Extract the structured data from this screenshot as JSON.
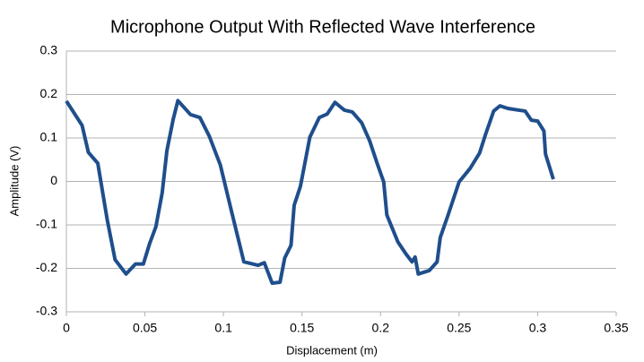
{
  "chart_data": {
    "type": "line",
    "title": "Microphone Output With Reflected Wave Interference",
    "x_label": "Displacement  (m)",
    "y_label": "Amplitude (V)",
    "xlim": [
      0,
      0.35
    ],
    "xticks": [
      0,
      0.05,
      0.1,
      0.15,
      0.2,
      0.25,
      0.3,
      0.35
    ],
    "ylim": [
      -0.3,
      0.3
    ],
    "yticks": [
      -0.3,
      -0.2,
      -0.1,
      0,
      0.1,
      0.2,
      0.3
    ],
    "grid": true,
    "series": [
      {
        "color": "#1f4e8c",
        "x": [
          0,
          0.01,
          0.014,
          0.02,
          0.026,
          0.031,
          0.038,
          0.044,
          0.049,
          0.053,
          0.057,
          0.061,
          0.064,
          0.068,
          0.071,
          0.075,
          0.079,
          0.085,
          0.091,
          0.098,
          0.105,
          0.113,
          0.122,
          0.126,
          0.131,
          0.136,
          0.139,
          0.143,
          0.145,
          0.149,
          0.155,
          0.161,
          0.166,
          0.171,
          0.177,
          0.182,
          0.188,
          0.193,
          0.198,
          0.202,
          0.204,
          0.211,
          0.216,
          0.22,
          0.222,
          0.224,
          0.231,
          0.236,
          0.238,
          0.243,
          0.25,
          0.257,
          0.263,
          0.267,
          0.272,
          0.276,
          0.281,
          0.288,
          0.292,
          0.296,
          0.3,
          0.304,
          0.305,
          0.31
        ],
        "values": [
          0.185,
          0.129,
          0.067,
          0.042,
          -0.088,
          -0.18,
          -0.213,
          -0.19,
          -0.19,
          -0.143,
          -0.104,
          -0.026,
          0.071,
          0.143,
          0.186,
          0.17,
          0.154,
          0.147,
          0.104,
          0.038,
          -0.067,
          -0.185,
          -0.193,
          -0.187,
          -0.234,
          -0.232,
          -0.176,
          -0.147,
          -0.055,
          -0.011,
          0.102,
          0.147,
          0.155,
          0.182,
          0.164,
          0.16,
          0.135,
          0.094,
          0.04,
          -0.001,
          -0.077,
          -0.139,
          -0.166,
          -0.185,
          -0.174,
          -0.213,
          -0.205,
          -0.185,
          -0.129,
          -0.077,
          -0.001,
          0.03,
          0.065,
          0.11,
          0.162,
          0.174,
          0.168,
          0.164,
          0.162,
          0.141,
          0.139,
          0.116,
          0.063,
          0.005
        ]
      }
    ]
  }
}
